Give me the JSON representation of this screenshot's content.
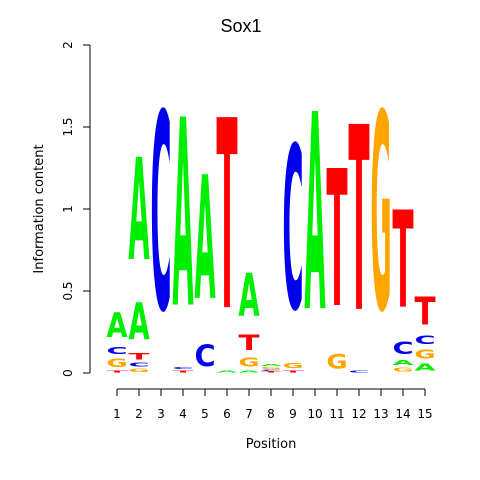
{
  "chart_data": {
    "type": "sequence-logo",
    "title": "Sox1",
    "xlabel": "Position",
    "ylabel": "Information content",
    "ylim": [
      0,
      2
    ],
    "y_ticks": [
      {
        "value": 0,
        "label": "0"
      },
      {
        "value": 0.5,
        "label": "0.5"
      },
      {
        "value": 1,
        "label": "1"
      },
      {
        "value": 1.5,
        "label": "1.5"
      },
      {
        "value": 2,
        "label": "2"
      }
    ],
    "positions": [
      "1",
      "2",
      "3",
      "4",
      "5",
      "6",
      "7",
      "8",
      "9",
      "10",
      "11",
      "12",
      "13",
      "14",
      "15"
    ],
    "colors": {
      "A": "#00ee00",
      "C": "#0000ee",
      "G": "#ffa500",
      "T": "#ff0000"
    },
    "stacks": [
      [
        {
          "letter": "T",
          "height": 0.02
        },
        {
          "letter": "G",
          "height": 0.08
        },
        {
          "letter": "C",
          "height": 0.07
        },
        {
          "letter": "A",
          "height": 0.24
        }
      ],
      [
        {
          "letter": "G",
          "height": 0.03
        },
        {
          "letter": "C",
          "height": 0.04
        },
        {
          "letter": "T",
          "height": 0.06
        },
        {
          "letter": "A",
          "height": 0.36
        },
        {
          "letter": "C",
          "height": 0.0
        },
        {
          "letter": "A",
          "height": 1.0
        }
      ],
      [
        {
          "letter": "C",
          "height": 1.93
        }
      ],
      [
        {
          "letter": "T",
          "height": 0.02
        },
        {
          "letter": "C",
          "height": 0.02
        },
        {
          "letter": "A",
          "height": 1.84
        }
      ],
      [
        {
          "letter": "C",
          "height": 0.21
        },
        {
          "letter": "A",
          "height": 1.21
        }
      ],
      [
        {
          "letter": "A",
          "height": 0.02
        },
        {
          "letter": "T",
          "height": 1.86
        }
      ],
      [
        {
          "letter": "A",
          "height": 0.02
        },
        {
          "letter": "G",
          "height": 0.09
        },
        {
          "letter": "T",
          "height": 0.15
        },
        {
          "letter": "A",
          "height": 0.42
        }
      ],
      [
        {
          "letter": "T",
          "height": 0.01
        },
        {
          "letter": "C",
          "height": 0.01
        },
        {
          "letter": "G",
          "height": 0.02
        },
        {
          "letter": "A",
          "height": 0.02
        }
      ],
      [
        {
          "letter": "T",
          "height": 0.02
        },
        {
          "letter": "G",
          "height": 0.05
        },
        {
          "letter": "C",
          "height": 1.6
        }
      ],
      [
        {
          "letter": "A",
          "height": 1.93
        }
      ],
      [
        {
          "letter": "G",
          "height": 0.14
        },
        {
          "letter": "T",
          "height": 1.34
        }
      ],
      [
        {
          "letter": "C",
          "height": 0.02
        },
        {
          "letter": "T",
          "height": 1.81
        }
      ],
      [
        {
          "letter": "G",
          "height": 1.93
        }
      ],
      [
        {
          "letter": "G",
          "height": 0.04
        },
        {
          "letter": "A",
          "height": 0.05
        },
        {
          "letter": "C",
          "height": 0.12
        },
        {
          "letter": "T",
          "height": 0.95
        }
      ],
      [
        {
          "letter": "A",
          "height": 0.07
        },
        {
          "letter": "G",
          "height": 0.09
        },
        {
          "letter": "C",
          "height": 0.08
        },
        {
          "letter": "T",
          "height": 0.27
        }
      ]
    ]
  }
}
